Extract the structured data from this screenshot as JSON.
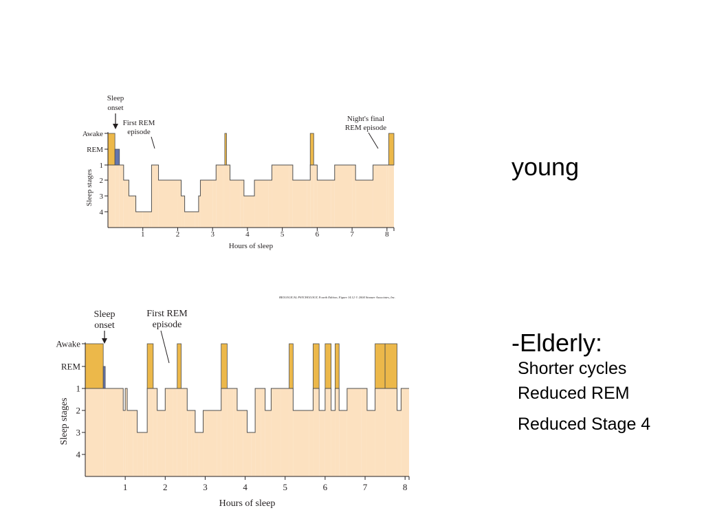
{
  "chart_data": [
    {
      "type": "area",
      "description_label": "young",
      "xlabel": "Hours of sleep",
      "ylabel": "Sleep stages",
      "xlim": [
        0,
        8.2
      ],
      "x_ticks": [
        "1",
        "2",
        "3",
        "4",
        "5",
        "6",
        "7",
        "8"
      ],
      "y_ticks": [
        "Awake",
        "REM",
        "1",
        "2",
        "3",
        "4"
      ],
      "annotations": [
        {
          "text": [
            "Sleep",
            "onset"
          ],
          "x": 0.2
        },
        {
          "text": [
            "First REM",
            "episode"
          ],
          "x": 1.3
        },
        {
          "text": [
            "Night's final",
            "REM episode"
          ],
          "x": 7.7
        }
      ],
      "series": [
        {
          "values": [
            [
              0,
              -1
            ],
            [
              0.2,
              0
            ],
            [
              0.33,
              1
            ],
            [
              0.45,
              2
            ],
            [
              0.6,
              3
            ],
            [
              0.7,
              3
            ],
            [
              0.8,
              4
            ],
            [
              1.0,
              4
            ],
            [
              1.2,
              4
            ],
            [
              1.25,
              1
            ],
            [
              1.4,
              1
            ],
            [
              1.45,
              2
            ],
            [
              2.0,
              2
            ],
            [
              2.1,
              3
            ],
            [
              2.2,
              4
            ],
            [
              2.5,
              4
            ],
            [
              2.6,
              3
            ],
            [
              2.65,
              2
            ],
            [
              3.0,
              2
            ],
            [
              3.1,
              1
            ],
            [
              3.3,
              1
            ],
            [
              3.35,
              -1
            ],
            [
              3.4,
              1
            ],
            [
              3.5,
              2
            ],
            [
              3.8,
              2
            ],
            [
              3.9,
              3
            ],
            [
              4.1,
              3
            ],
            [
              4.2,
              2
            ],
            [
              4.6,
              2
            ],
            [
              4.7,
              1
            ],
            [
              5.2,
              1
            ],
            [
              5.3,
              2
            ],
            [
              5.7,
              2
            ],
            [
              5.8,
              -1
            ],
            [
              5.9,
              1
            ],
            [
              6.0,
              2
            ],
            [
              6.4,
              2
            ],
            [
              6.5,
              1
            ],
            [
              7.0,
              1
            ],
            [
              7.1,
              2
            ],
            [
              7.5,
              2
            ],
            [
              7.6,
              1
            ],
            [
              8.0,
              1
            ],
            [
              8.05,
              -1
            ],
            [
              8.2,
              -1
            ]
          ]
        }
      ],
      "colors": {
        "awake": "#ecb84a",
        "rem": "#6475ad",
        "nrem": "#fce1c0",
        "outline": "#4d4d4d"
      }
    },
    {
      "type": "area",
      "source": "BIOLOGICAL PSYCHOLOGY, Fourth Edition, Figure 14.12 © 2004 Sinauer Associates, Inc.",
      "xlabel": "Hours of sleep",
      "ylabel": "Sleep stages",
      "xlim": [
        0,
        8.1
      ],
      "x_ticks": [
        "1",
        "2",
        "3",
        "4",
        "5",
        "6",
        "7",
        "8"
      ],
      "y_ticks": [
        "Awake",
        "REM",
        "1",
        "2",
        "3",
        "4"
      ],
      "annotations": [
        {
          "text": [
            "Sleep",
            "onset"
          ],
          "x": 0.45
        },
        {
          "text": [
            "First REM",
            "episode"
          ],
          "x": 2.0
        }
      ],
      "series": [
        {
          "values": [
            [
              0,
              -1
            ],
            [
              0.45,
              0
            ],
            [
              0.5,
              1
            ],
            [
              0.95,
              2
            ],
            [
              1.0,
              1
            ],
            [
              1.05,
              2
            ],
            [
              1.2,
              2
            ],
            [
              1.3,
              3
            ],
            [
              1.45,
              3
            ],
            [
              1.55,
              -1
            ],
            [
              1.7,
              1
            ],
            [
              1.8,
              2
            ],
            [
              1.9,
              2
            ],
            [
              2.0,
              1
            ],
            [
              2.2,
              1
            ],
            [
              2.3,
              -1
            ],
            [
              2.4,
              1
            ],
            [
              2.55,
              2
            ],
            [
              2.65,
              2
            ],
            [
              2.75,
              3
            ],
            [
              2.85,
              3
            ],
            [
              2.95,
              2
            ],
            [
              3.3,
              2
            ],
            [
              3.4,
              -1
            ],
            [
              3.55,
              1
            ],
            [
              3.7,
              1
            ],
            [
              3.8,
              2
            ],
            [
              3.95,
              2
            ],
            [
              4.05,
              3
            ],
            [
              4.15,
              3
            ],
            [
              4.25,
              1
            ],
            [
              4.4,
              1
            ],
            [
              4.5,
              2
            ],
            [
              4.65,
              1
            ],
            [
              4.9,
              1
            ],
            [
              5.1,
              -1
            ],
            [
              5.2,
              2
            ],
            [
              5.6,
              2
            ],
            [
              5.7,
              -1
            ],
            [
              5.85,
              2
            ],
            [
              6.0,
              -1
            ],
            [
              6.15,
              2
            ],
            [
              6.25,
              -1
            ],
            [
              6.35,
              2
            ],
            [
              6.55,
              1
            ],
            [
              6.9,
              1
            ],
            [
              7.05,
              2
            ],
            [
              7.25,
              -1
            ],
            [
              7.5,
              -1
            ],
            [
              7.8,
              2
            ],
            [
              7.9,
              1
            ],
            [
              8.1,
              1
            ]
          ]
        }
      ],
      "colors": {
        "awake": "#ecb84a",
        "rem": "#6475ad",
        "nrem": "#fce1c0",
        "outline": "#4d4d4d"
      }
    }
  ],
  "side_text": {
    "young": "young",
    "elderly_heading": "-Elderly:",
    "line1": "Shorter cycles",
    "line2": "Reduced REM",
    "line3": "Reduced Stage 4"
  }
}
